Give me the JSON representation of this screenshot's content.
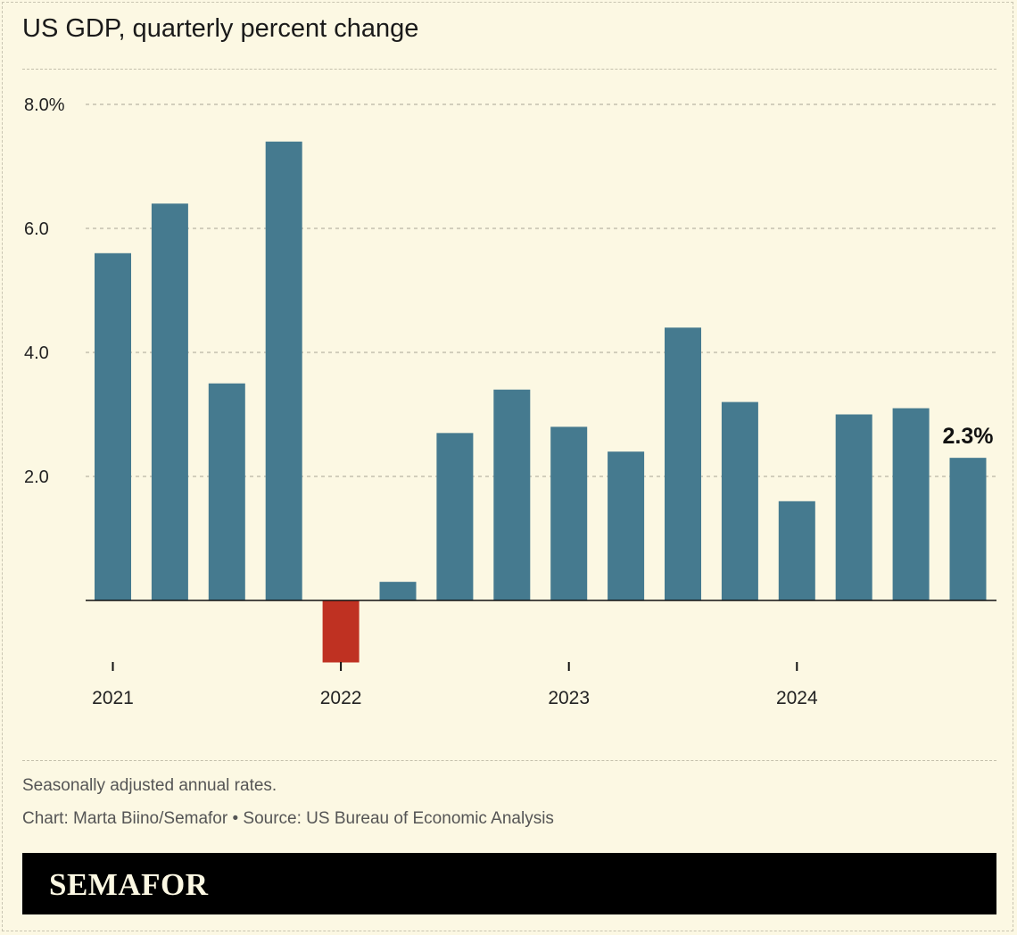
{
  "header": {
    "title": "US GDP, quarterly percent change"
  },
  "chart_data": {
    "type": "bar",
    "title": "US GDP, quarterly percent change",
    "xlabel": "",
    "ylabel": "",
    "categories": [
      "2021 Q1",
      "2021 Q2",
      "2021 Q3",
      "2021 Q4",
      "2022 Q1",
      "2022 Q2",
      "2022 Q3",
      "2022 Q4",
      "2023 Q1",
      "2023 Q2",
      "2023 Q3",
      "2023 Q4",
      "2024 Q1",
      "2024 Q2",
      "2024 Q3",
      "2024 Q4"
    ],
    "values": [
      5.6,
      6.4,
      3.5,
      7.4,
      -1.0,
      0.3,
      2.7,
      3.4,
      2.8,
      2.4,
      4.4,
      3.2,
      1.6,
      3.0,
      3.1,
      2.3
    ],
    "ylim": [
      -1.0,
      8.0
    ],
    "yticks": [
      2.0,
      4.0,
      6.0,
      8.0
    ],
    "ytick_labels": [
      "2.0",
      "4.0",
      "6.0",
      "8.0%"
    ],
    "year_ticks": [
      {
        "label": "2021",
        "index": 0
      },
      {
        "label": "2022",
        "index": 4
      },
      {
        "label": "2023",
        "index": 8
      },
      {
        "label": "2024",
        "index": 12
      }
    ],
    "colors": {
      "positive": "#457a8f",
      "negative": "#bf3122"
    },
    "annotation": {
      "index": 15,
      "text": "2.3%"
    },
    "grid": true,
    "legend": "none"
  },
  "notes": {
    "subtitle": "Seasonally adjusted annual rates.",
    "source": "Chart: Marta Biino/Semafor • Source: US Bureau of Economic Analysis"
  },
  "brand": {
    "logo_text": "SEMAFOR"
  }
}
